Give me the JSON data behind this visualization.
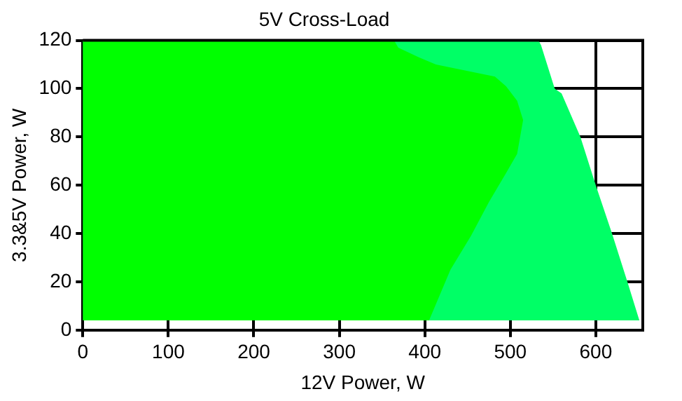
{
  "chart_data": {
    "type": "area",
    "orientation": "horizontal",
    "title": "5V Cross-Load",
    "xlabel": "12V Power, W",
    "ylabel": "3.3&5V Power, W",
    "xlim": [
      0,
      655
    ],
    "xticks": [
      0,
      100,
      200,
      300,
      400,
      500,
      600
    ],
    "ylim": [
      0,
      120
    ],
    "yticks": [
      0,
      20,
      40,
      60,
      80,
      100,
      120
    ],
    "grid": true,
    "legend": false,
    "series": [
      {
        "color": "#00ff66",
        "values": [
          651,
          637,
          619,
          600,
          582,
          560,
          552,
          536,
          533
        ],
        "x": [
          4,
          20,
          40,
          60,
          80,
          98,
          100,
          118,
          120
        ]
      },
      {
        "color": "#00ff00",
        "values": [
          405,
          430,
          454,
          475,
          495,
          508,
          515,
          508,
          495,
          482,
          441,
          413,
          393,
          369,
          364
        ],
        "x": [
          4,
          25,
          39,
          53,
          65,
          73,
          87,
          95,
          101,
          105,
          108,
          110,
          113,
          117,
          120
        ]
      }
    ]
  }
}
